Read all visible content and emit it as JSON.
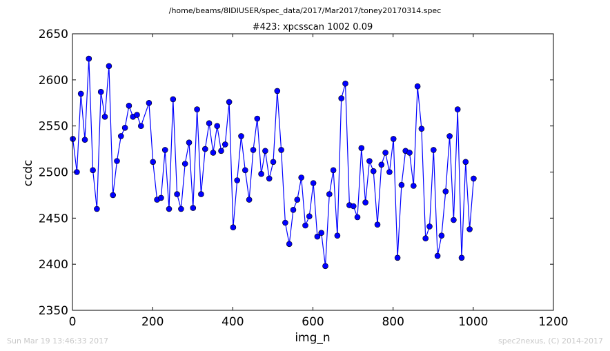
{
  "figure": {
    "path_title": "/home/beams/8IDIUSER/spec_data/2017/Mar2017/toney20170314.spec",
    "footer_left": "Sun Mar 19 13:46:33 2017",
    "footer_right": "spec2nexus, (C) 2014-2017"
  },
  "colors": {
    "line": "#0000ff",
    "marker": "#0000ff",
    "axes": "#000000"
  },
  "chart_data": {
    "type": "line",
    "title": "#423: xpcsscan 1002 0.09",
    "xlabel": "img_n",
    "ylabel": "ccdc",
    "xlim": [
      0,
      1200
    ],
    "ylim": [
      2350,
      2650
    ],
    "xticks": [
      0,
      200,
      400,
      600,
      800,
      1000,
      1200
    ],
    "yticks": [
      2350,
      2400,
      2450,
      2500,
      2550,
      2600,
      2650
    ],
    "xtick_labels": [
      "0",
      "200",
      "400",
      "600",
      "800",
      "1000",
      "1200"
    ],
    "ytick_labels": [
      "2350",
      "2400",
      "2450",
      "2500",
      "2550",
      "2600",
      "2650"
    ],
    "grid": false,
    "x": [
      1,
      11,
      21,
      31,
      41,
      51,
      61,
      71,
      81,
      91,
      101,
      111,
      121,
      131,
      141,
      151,
      161,
      171,
      191,
      201,
      211,
      221,
      231,
      241,
      251,
      261,
      271,
      281,
      291,
      301,
      311,
      321,
      331,
      341,
      351,
      361,
      371,
      381,
      391,
      401,
      411,
      421,
      431,
      441,
      451,
      461,
      471,
      481,
      491,
      501,
      511,
      521,
      531,
      541,
      551,
      561,
      571,
      581,
      591,
      601,
      611,
      621,
      631,
      641,
      651,
      661,
      671,
      681,
      691,
      701,
      711,
      721,
      731,
      741,
      751,
      761,
      771,
      781,
      791,
      801,
      811,
      821,
      831,
      841,
      851,
      861,
      871,
      881,
      891,
      901,
      911,
      921,
      931,
      941,
      951,
      961,
      971,
      981,
      991,
      1001
    ],
    "y": [
      2536,
      2500,
      2585,
      2535,
      2623,
      2502,
      2460,
      2587,
      2560,
      2615,
      2475,
      2512,
      2539,
      2548,
      2572,
      2560,
      2562,
      2550,
      2575,
      2511,
      2470,
      2472,
      2524,
      2460,
      2579,
      2476,
      2460,
      2509,
      2532,
      2461,
      2568,
      2476,
      2525,
      2553,
      2521,
      2550,
      2523,
      2530,
      2576,
      2440,
      2491,
      2539,
      2502,
      2470,
      2524,
      2558,
      2498,
      2523,
      2493,
      2511,
      2588,
      2524,
      2445,
      2422,
      2459,
      2470,
      2494,
      2442,
      2452,
      2488,
      2430,
      2434,
      2398,
      2476,
      2502,
      2431,
      2580,
      2596,
      2464,
      2463,
      2451,
      2526,
      2467,
      2512,
      2501,
      2443,
      2508,
      2521,
      2500,
      2536,
      2407,
      2486,
      2523,
      2521,
      2485,
      2593,
      2547,
      2428,
      2441,
      2524,
      2409,
      2431,
      2479,
      2539,
      2448,
      2568,
      2407,
      2511,
      2438,
      2493
    ]
  }
}
